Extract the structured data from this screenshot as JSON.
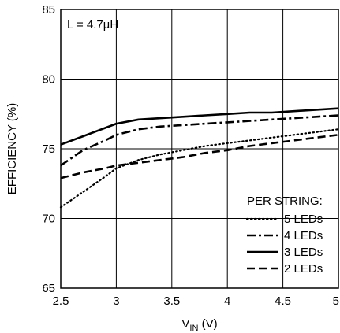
{
  "chart_data": {
    "type": "line",
    "annotation": "L = 4.7µH",
    "xlabel_main": "V",
    "xlabel_sub": "IN",
    "xlabel_unit": " (V)",
    "ylabel": "EFFICIENCY (%)",
    "xlim": [
      2.5,
      5
    ],
    "ylim": [
      65,
      85
    ],
    "x_ticks": [
      2.5,
      3,
      3.5,
      4,
      4.5,
      5
    ],
    "x_tick_labels": [
      "2.5",
      "3",
      "3.5",
      "4",
      "4.5",
      "5"
    ],
    "y_ticks": [
      65,
      70,
      75,
      80,
      85
    ],
    "y_tick_labels": [
      "65",
      "70",
      "75",
      "80",
      "85"
    ],
    "grid": true,
    "legend": {
      "title": "PER STRING:",
      "placement": "bottom-right"
    },
    "series": [
      {
        "name": "5 LEDs",
        "style": "dotted",
        "x": [
          2.5,
          2.7,
          2.9,
          3.0,
          3.2,
          3.4,
          3.6,
          3.8,
          4.0,
          4.2,
          4.4,
          4.6,
          4.8,
          5.0
        ],
        "y": [
          70.8,
          71.9,
          73.0,
          73.6,
          74.2,
          74.6,
          74.9,
          75.2,
          75.4,
          75.6,
          75.8,
          76.0,
          76.2,
          76.4
        ]
      },
      {
        "name": "4 LEDs",
        "style": "dash-dot",
        "x": [
          2.5,
          2.7,
          2.9,
          3.0,
          3.2,
          3.4,
          3.6,
          3.8,
          4.0,
          4.2,
          4.4,
          4.6,
          4.8,
          5.0
        ],
        "y": [
          73.8,
          74.9,
          75.6,
          76.0,
          76.4,
          76.6,
          76.7,
          76.8,
          76.9,
          77.0,
          77.1,
          77.2,
          77.3,
          77.4
        ]
      },
      {
        "name": "3 LEDs",
        "style": "solid",
        "x": [
          2.5,
          2.7,
          2.9,
          3.0,
          3.2,
          3.4,
          3.6,
          3.8,
          4.0,
          4.2,
          4.4,
          4.6,
          4.8,
          5.0
        ],
        "y": [
          75.3,
          75.9,
          76.5,
          76.8,
          77.1,
          77.2,
          77.3,
          77.4,
          77.5,
          77.6,
          77.6,
          77.7,
          77.8,
          77.9
        ]
      },
      {
        "name": "2 LEDs",
        "style": "dashed",
        "x": [
          2.5,
          2.7,
          2.9,
          3.0,
          3.2,
          3.4,
          3.6,
          3.8,
          4.0,
          4.2,
          4.4,
          4.6,
          4.8,
          5.0
        ],
        "y": [
          72.9,
          73.3,
          73.6,
          73.8,
          74.0,
          74.2,
          74.4,
          74.7,
          74.9,
          75.2,
          75.4,
          75.6,
          75.8,
          76.0
        ]
      }
    ]
  }
}
